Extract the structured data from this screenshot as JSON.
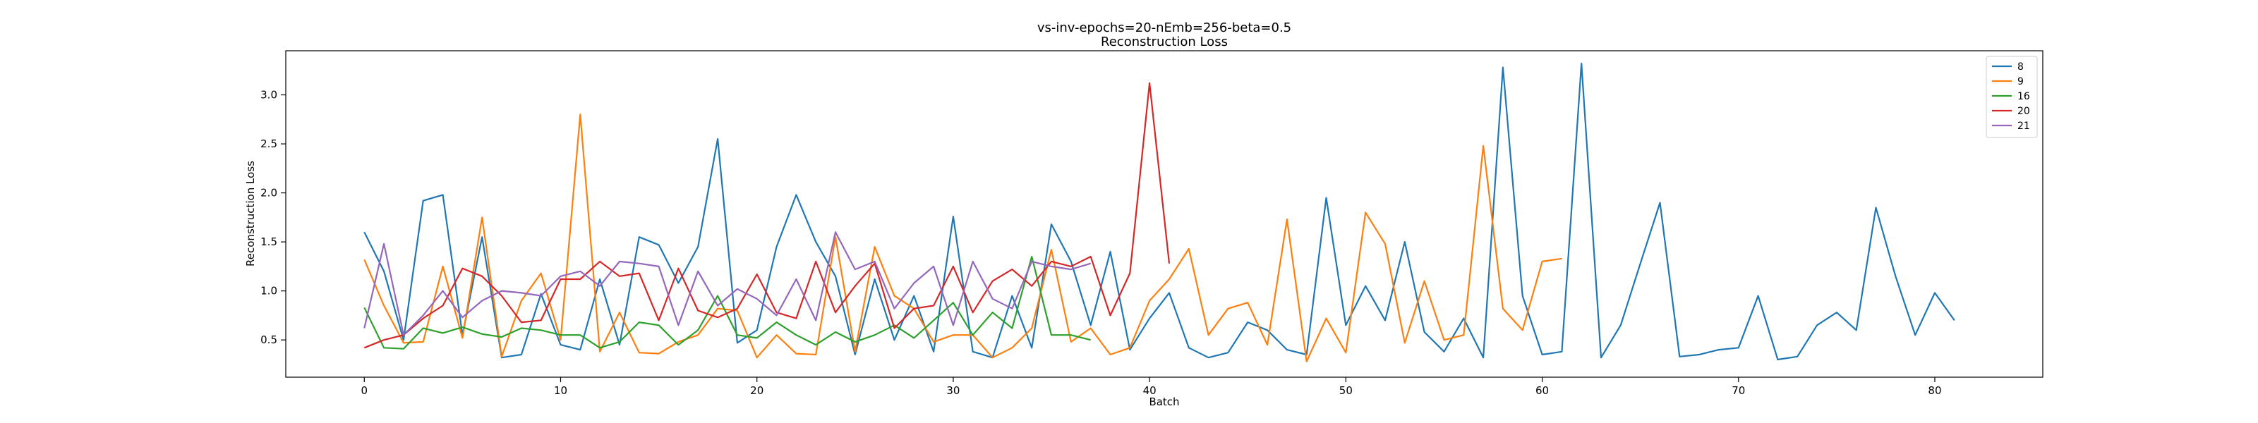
{
  "chart_data": {
    "type": "line",
    "title": "vs-inv-epochs=20-nEmb=256-beta=0.5",
    "subtitle": "Reconstruction Loss",
    "xlabel": "Batch",
    "ylabel": "Reconstruction Loss",
    "xlim": [
      -4,
      85.5
    ],
    "ylim": [
      0.12,
      3.45
    ],
    "xticks": [
      0,
      10,
      20,
      30,
      40,
      50,
      60,
      70,
      80
    ],
    "yticks": [
      0.5,
      1.0,
      1.5,
      2.0,
      2.5,
      3.0
    ],
    "ytick_labels": [
      "0.5",
      "1.0",
      "1.5",
      "2.0",
      "2.5",
      "3.0"
    ],
    "legend_position": "top-right",
    "grid": false,
    "series": [
      {
        "name": "8",
        "color": "#1f77b4",
        "values": [
          1.6,
          1.2,
          0.5,
          1.92,
          1.98,
          0.55,
          1.55,
          0.32,
          0.35,
          0.97,
          0.45,
          0.4,
          1.12,
          0.45,
          1.55,
          1.47,
          1.08,
          1.45,
          2.55,
          0.47,
          0.6,
          1.45,
          1.98,
          1.5,
          1.15,
          0.35,
          1.12,
          0.5,
          0.95,
          0.38,
          1.76,
          0.38,
          0.32,
          0.95,
          0.42,
          1.68,
          1.3,
          0.65,
          1.4,
          0.4,
          0.72,
          0.98,
          0.42,
          0.32,
          0.37,
          0.68,
          0.6,
          0.4,
          0.35,
          1.95,
          0.65,
          1.05,
          0.7,
          1.5,
          0.58,
          0.38,
          0.72,
          0.32,
          3.28,
          0.95,
          0.35,
          0.38,
          3.32,
          0.32,
          0.65,
          1.28,
          1.9,
          0.33,
          0.35,
          0.4,
          0.42,
          0.95,
          0.3,
          0.33,
          0.65,
          0.78,
          0.6,
          1.85,
          1.15,
          0.55,
          0.98,
          0.7
        ]
      },
      {
        "name": "9",
        "color": "#ff7f0e",
        "values": [
          1.32,
          0.85,
          0.47,
          0.48,
          1.25,
          0.52,
          1.75,
          0.33,
          0.9,
          1.18,
          0.5,
          2.8,
          0.38,
          0.78,
          0.37,
          0.36,
          0.48,
          0.55,
          0.82,
          0.8,
          0.32,
          0.55,
          0.36,
          0.35,
          1.55,
          0.38,
          1.45,
          0.95,
          0.82,
          0.48,
          0.55,
          0.55,
          0.32,
          0.42,
          0.62,
          1.42,
          0.48,
          0.62,
          0.35,
          0.42,
          0.9,
          1.12,
          1.43,
          0.55,
          0.82,
          0.88,
          0.45,
          1.73,
          0.28,
          0.72,
          0.37,
          1.8,
          1.48,
          0.47,
          1.1,
          0.5,
          0.55,
          2.48,
          0.82,
          0.6,
          1.3,
          1.33
        ]
      },
      {
        "name": "16",
        "color": "#2ca02c",
        "values": [
          0.83,
          0.42,
          0.41,
          0.62,
          0.57,
          0.63,
          0.56,
          0.53,
          0.62,
          0.6,
          0.55,
          0.55,
          0.42,
          0.48,
          0.68,
          0.65,
          0.45,
          0.6,
          0.95,
          0.55,
          0.52,
          0.68,
          0.55,
          0.45,
          0.58,
          0.48,
          0.55,
          0.65,
          0.52,
          0.7,
          0.88,
          0.55,
          0.78,
          0.62,
          1.35,
          0.55,
          0.55,
          0.5
        ]
      },
      {
        "name": "20",
        "color": "#d62728",
        "values": [
          0.42,
          0.5,
          0.55,
          0.72,
          0.85,
          1.23,
          1.15,
          0.95,
          0.68,
          0.7,
          1.12,
          1.12,
          1.3,
          1.15,
          1.18,
          0.7,
          1.23,
          0.8,
          0.73,
          0.82,
          1.17,
          0.78,
          0.72,
          1.3,
          0.78,
          1.05,
          1.28,
          0.62,
          0.82,
          0.85,
          1.25,
          0.78,
          1.1,
          1.22,
          1.05,
          1.3,
          1.25,
          1.35,
          0.75,
          1.18,
          3.12,
          1.28
        ]
      },
      {
        "name": "21",
        "color": "#9467bd",
        "values": [
          0.62,
          1.48,
          0.55,
          0.75,
          1.0,
          0.73,
          0.9,
          1.0,
          0.98,
          0.95,
          1.15,
          1.2,
          1.05,
          1.3,
          1.28,
          1.25,
          0.65,
          1.2,
          0.85,
          1.02,
          0.92,
          0.75,
          1.12,
          0.7,
          1.6,
          1.22,
          1.3,
          0.82,
          1.08,
          1.25,
          0.65,
          1.3,
          0.92,
          0.82,
          1.3,
          1.25,
          1.22,
          1.28
        ]
      }
    ]
  }
}
